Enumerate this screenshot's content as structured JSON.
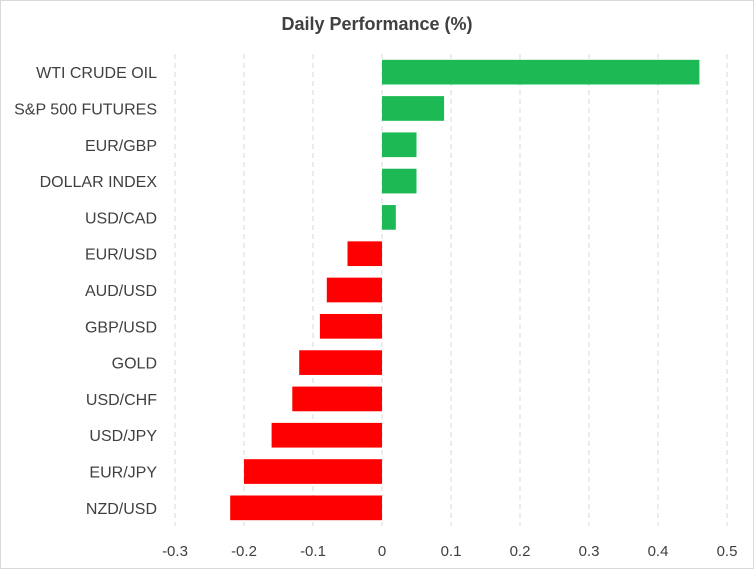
{
  "chart_data": {
    "type": "bar",
    "orientation": "horizontal",
    "title": "Daily Performance (%)",
    "xlabel": "",
    "ylabel": "",
    "categories": [
      "WTI CRUDE OIL",
      "S&P 500 FUTURES",
      "EUR/GBP",
      "DOLLAR INDEX",
      "USD/CAD",
      "EUR/USD",
      "AUD/USD",
      "GBP/USD",
      "GOLD",
      "USD/CHF",
      "USD/JPY",
      "EUR/JPY",
      "NZD/USD"
    ],
    "values": [
      0.46,
      0.09,
      0.05,
      0.05,
      0.02,
      -0.05,
      -0.08,
      -0.09,
      -0.12,
      -0.13,
      -0.16,
      -0.2,
      -0.22
    ],
    "xlim": [
      -0.3,
      0.5
    ],
    "xticks": [
      "-0.3",
      "-0.2",
      "-0.1",
      "0",
      "0.1",
      "0.2",
      "0.3",
      "0.4",
      "0.5"
    ],
    "grid": "vertical dashed",
    "legend": "none",
    "colors": {
      "positive": "#1db954",
      "negative": "#ff0000",
      "grid": "#d9d9d9",
      "text": "#404040"
    }
  }
}
